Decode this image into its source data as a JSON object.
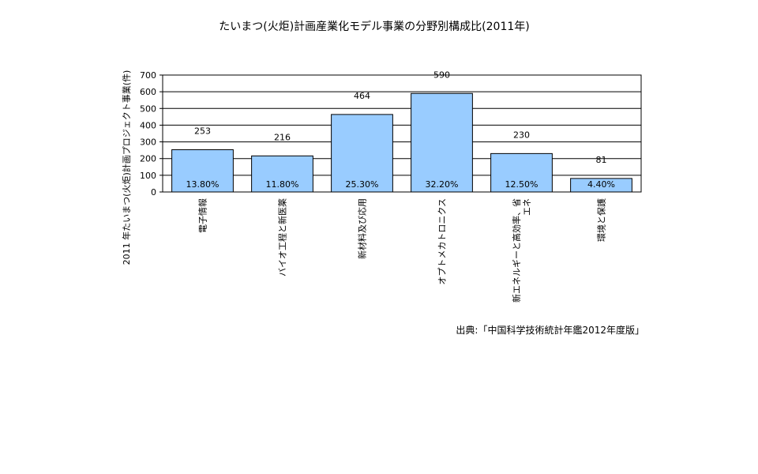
{
  "chart_data": {
    "type": "bar",
    "title": "たいまつ(火炬)計画産業化モデル事業の分野別構成比(2011年)",
    "xlabel": "",
    "ylabel": "2011 年たいまつ(火炬)計画プロジェクト事業(件)",
    "ylim": [
      0,
      700
    ],
    "yticks": [
      0,
      100,
      200,
      300,
      400,
      500,
      600,
      700
    ],
    "categories": [
      "電子情報",
      "バイオ工程と新医薬",
      "新材料及び応用",
      "オプトメカトロニクス",
      "新エネルギーと高効率、省エネ",
      "環境と保護"
    ],
    "category_lines": [
      [
        "電子情報"
      ],
      [
        "バイオ工程と新医薬"
      ],
      [
        "新材料及び応用"
      ],
      [
        "オプトメカトロニクス"
      ],
      [
        "新エネルギーと高効率、省",
        "エネ"
      ],
      [
        "環境と保護"
      ]
    ],
    "values": [
      253,
      216,
      464,
      590,
      230,
      81
    ],
    "value_labels": [
      "253",
      "216",
      "464",
      "590",
      "230",
      "81"
    ],
    "percent_labels": [
      "13.80%",
      "11.80%",
      "25.30%",
      "32.20%",
      "12.50%",
      "4.40%"
    ],
    "grid": true,
    "legend": "none",
    "bar_color": "#99ccff",
    "bar_edge_color": "#000000",
    "source": "出典:「中国科学技術統計年鑑2012年度版」"
  }
}
